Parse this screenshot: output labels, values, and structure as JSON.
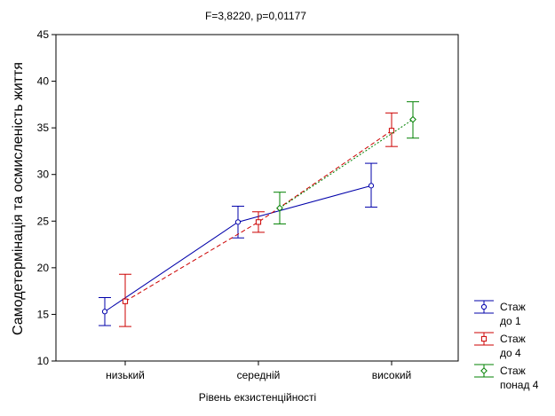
{
  "chart_data": {
    "type": "line",
    "title": "F=3,8220, p=0,01177",
    "xlabel": "Рівень екзистенційності",
    "ylabel": "Самодетермінація та осмисленість життя",
    "categories": [
      "низький",
      "середній",
      "високий"
    ],
    "ylim": [
      10,
      45
    ],
    "yticks": [
      "10",
      "15",
      "20",
      "25",
      "30",
      "35",
      "40",
      "45"
    ],
    "grid": false,
    "legend_position": "bottom-right",
    "series": [
      {
        "name": "Стаж до 1",
        "legend_lines": [
          "Стаж",
          "до 1"
        ],
        "color": "#0000aa",
        "marker": "circle",
        "line_style": "solid",
        "values": [
          15.3,
          24.9,
          28.8
        ],
        "lower": [
          13.8,
          23.2,
          26.5
        ],
        "upper": [
          16.8,
          26.6,
          31.2
        ]
      },
      {
        "name": "Стаж до 4",
        "legend_lines": [
          "Стаж",
          "до 4"
        ],
        "color": "#cc0000",
        "marker": "square",
        "line_style": "dashed",
        "values": [
          16.4,
          24.9,
          34.7
        ],
        "lower": [
          13.7,
          23.8,
          33.0
        ],
        "upper": [
          19.3,
          26.0,
          36.6
        ]
      },
      {
        "name": "Стаж понад 4",
        "legend_lines": [
          "Стаж",
          "понад 4"
        ],
        "color": "#008000",
        "marker": "diamond",
        "line_style": "dotted",
        "values": [
          null,
          26.4,
          35.9
        ],
        "lower": [
          null,
          24.7,
          33.9
        ],
        "upper": [
          null,
          28.1,
          37.8
        ]
      }
    ]
  }
}
